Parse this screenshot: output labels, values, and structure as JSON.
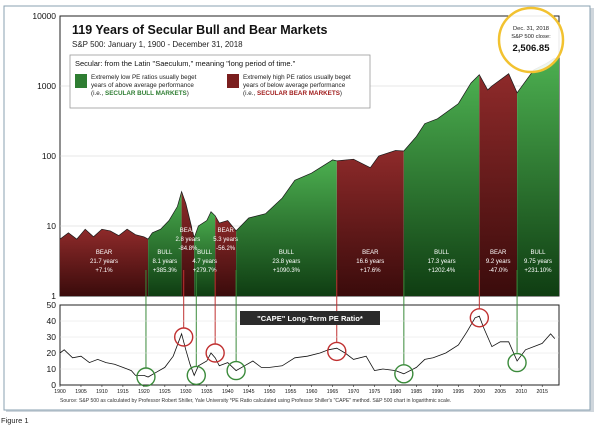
{
  "figure_caption": "Figure 1",
  "source_note": "Source: S&P 500 as calculated by Professor Robert Shiller, Yale University  *PE Ratio calculated using Professor Shiller's \"CAPE\" method. S&P 500 chart in logarithmic scale.",
  "colors": {
    "bull": "#2e7d32",
    "bear": "#7a1e1e",
    "circle_green": "#3a8a3a",
    "circle_red": "#c03030",
    "callout": "#f2c230"
  },
  "chart_data": [
    {
      "type": "area",
      "title": "119 Years of Secular Bull and Bear Markets",
      "subtitle": "S&P 500: January 1, 1900 - December 31, 2018",
      "y_scale": "log",
      "ylim": [
        1,
        10000
      ],
      "y_ticks": [
        "10000",
        "1000",
        "100",
        "10",
        "1"
      ],
      "legend": {
        "heading": "Secular: from the Latin \"Saeculum,\" meaning \"long period of time.\"",
        "bull_line1": "Extremely low PE ratios usually beget",
        "bull_line2": "years of above average performance",
        "bull_line3_prefix": "(i.e., ",
        "bull_line3_em": "SECULAR BULL MARKETS",
        "bull_line3_suffix": ")",
        "bear_line1": "Extremely high PE ratios usually beget",
        "bear_line2": "years of below average performance",
        "bear_line3_prefix": "(i.e., ",
        "bear_line3_em": "SECULAR BEAR MARKETS",
        "bear_line3_suffix": ")"
      },
      "callout": {
        "line1": "Dec. 31, 2018",
        "line2": "S&P 500 close:",
        "value": "2,506.85"
      },
      "series": [
        {
          "x": [
            1900,
            1902,
            1904,
            1906,
            1908,
            1910,
            1912,
            1914,
            1916,
            1918,
            1920,
            1921,
            1922,
            1924,
            1926,
            1928,
            1929,
            1930,
            1931,
            1932,
            1933,
            1935,
            1936,
            1937,
            1938,
            1940,
            1942,
            1945,
            1949,
            1953,
            1956,
            1960,
            1965,
            1966,
            1970,
            1974,
            1976,
            1980,
            1982,
            1985,
            1987,
            1990,
            1995,
            1998,
            2000,
            2002,
            2003,
            2007,
            2009,
            2013,
            2016,
            2018
          ],
          "values": [
            6.5,
            8,
            6.5,
            9,
            7,
            9,
            8.5,
            7.3,
            9,
            7.5,
            7,
            6.5,
            8,
            9,
            12,
            19,
            31,
            21,
            12,
            6.8,
            10,
            12,
            16,
            14,
            11,
            12,
            8.5,
            13,
            15,
            25,
            45,
            57,
            88,
            85,
            90,
            68,
            100,
            120,
            118,
            190,
            290,
            340,
            560,
            1100,
            1450,
            880,
            1000,
            1500,
            800,
            1700,
            2100,
            2506.85
          ]
        }
      ],
      "segments": [
        {
          "kind": "bear",
          "start": 1900,
          "end": 1921,
          "label": "BEAR",
          "years": "21.7 years",
          "change": "+7.1%"
        },
        {
          "kind": "bull",
          "start": 1921,
          "end": 1929,
          "label": "BULL",
          "years": "8.1 years",
          "change": "+385.3%"
        },
        {
          "kind": "bear",
          "start": 1929,
          "end": 1932,
          "label": "BEAR",
          "years": "2.8 years",
          "change": "-84.8%"
        },
        {
          "kind": "bull",
          "start": 1932,
          "end": 1937,
          "label": "BULL",
          "years": "4.7 years",
          "change": "+279.7%"
        },
        {
          "kind": "bear",
          "start": 1937,
          "end": 1942,
          "label": "BEAR",
          "years": "5.3 years",
          "change": "-56.2%"
        },
        {
          "kind": "bull",
          "start": 1942,
          "end": 1966,
          "label": "BULL",
          "years": "23.8 years",
          "change": "+1090.3%"
        },
        {
          "kind": "bear",
          "start": 1966,
          "end": 1982,
          "label": "BEAR",
          "years": "16.6 years",
          "change": "+17.6%"
        },
        {
          "kind": "bull",
          "start": 1982,
          "end": 2000,
          "label": "BULL",
          "years": "17.3 years",
          "change": "+1202.4%"
        },
        {
          "kind": "bear",
          "start": 2000,
          "end": 2009,
          "label": "BEAR",
          "years": "9.2 years",
          "change": "-47.0%"
        },
        {
          "kind": "bull",
          "start": 2009,
          "end": 2018.99,
          "label": "BULL",
          "years": "9.75 years",
          "change": "+231.10%"
        }
      ]
    },
    {
      "type": "line",
      "title": "\"CAPE\" Long-Term PE Ratio*",
      "ylim": [
        0,
        50
      ],
      "y_ticks": [
        "50",
        "40",
        "30",
        "20",
        "10",
        "0"
      ],
      "xlim": [
        1900,
        2019
      ],
      "x_ticks": [
        "1900",
        "1905",
        "1910",
        "1915",
        "1920",
        "1925",
        "1930",
        "1935",
        "1940",
        "1945",
        "1950",
        "1955",
        "1960",
        "1965",
        "1970",
        "1975",
        "1980",
        "1985",
        "1990",
        "1995",
        "2000",
        "2005",
        "2010",
        "2015"
      ],
      "series": [
        {
          "x": [
            1900,
            1901,
            1903,
            1905,
            1907,
            1909,
            1911,
            1913,
            1915,
            1917,
            1918,
            1920,
            1921,
            1923,
            1925,
            1927,
            1929,
            1930,
            1931,
            1932,
            1933,
            1935,
            1936,
            1937,
            1938,
            1940,
            1942,
            1944,
            1946,
            1948,
            1950,
            1953,
            1956,
            1959,
            1962,
            1964,
            1966,
            1968,
            1970,
            1973,
            1975,
            1977,
            1980,
            1982,
            1985,
            1987,
            1989,
            1992,
            1995,
            1997,
            1999,
            2000,
            2001,
            2003,
            2005,
            2007,
            2009,
            2011,
            2013,
            2015,
            2017,
            2018
          ],
          "values": [
            20,
            22,
            17,
            18,
            14,
            16,
            14,
            13,
            11,
            9,
            6,
            6,
            5,
            8,
            11,
            18,
            32,
            22,
            13,
            6,
            12,
            15,
            20,
            17,
            12,
            14,
            9,
            12,
            15,
            11,
            11,
            12,
            17,
            18,
            20,
            22,
            23,
            20,
            16,
            18,
            9,
            10,
            9,
            7,
            11,
            16,
            17,
            20,
            25,
            33,
            42,
            43,
            36,
            24,
            27,
            27,
            15,
            22,
            24,
            26,
            32,
            29
          ]
        }
      ],
      "highlights": [
        {
          "kind": "low",
          "x": 1920.5,
          "y": 5
        },
        {
          "kind": "high",
          "x": 1929.5,
          "y": 30
        },
        {
          "kind": "low",
          "x": 1932.5,
          "y": 6
        },
        {
          "kind": "high",
          "x": 1937,
          "y": 20
        },
        {
          "kind": "low",
          "x": 1942,
          "y": 9
        },
        {
          "kind": "high",
          "x": 1966,
          "y": 21
        },
        {
          "kind": "low",
          "x": 1982,
          "y": 7
        },
        {
          "kind": "high",
          "x": 2000,
          "y": 42
        },
        {
          "kind": "low",
          "x": 2009,
          "y": 14
        }
      ]
    }
  ]
}
